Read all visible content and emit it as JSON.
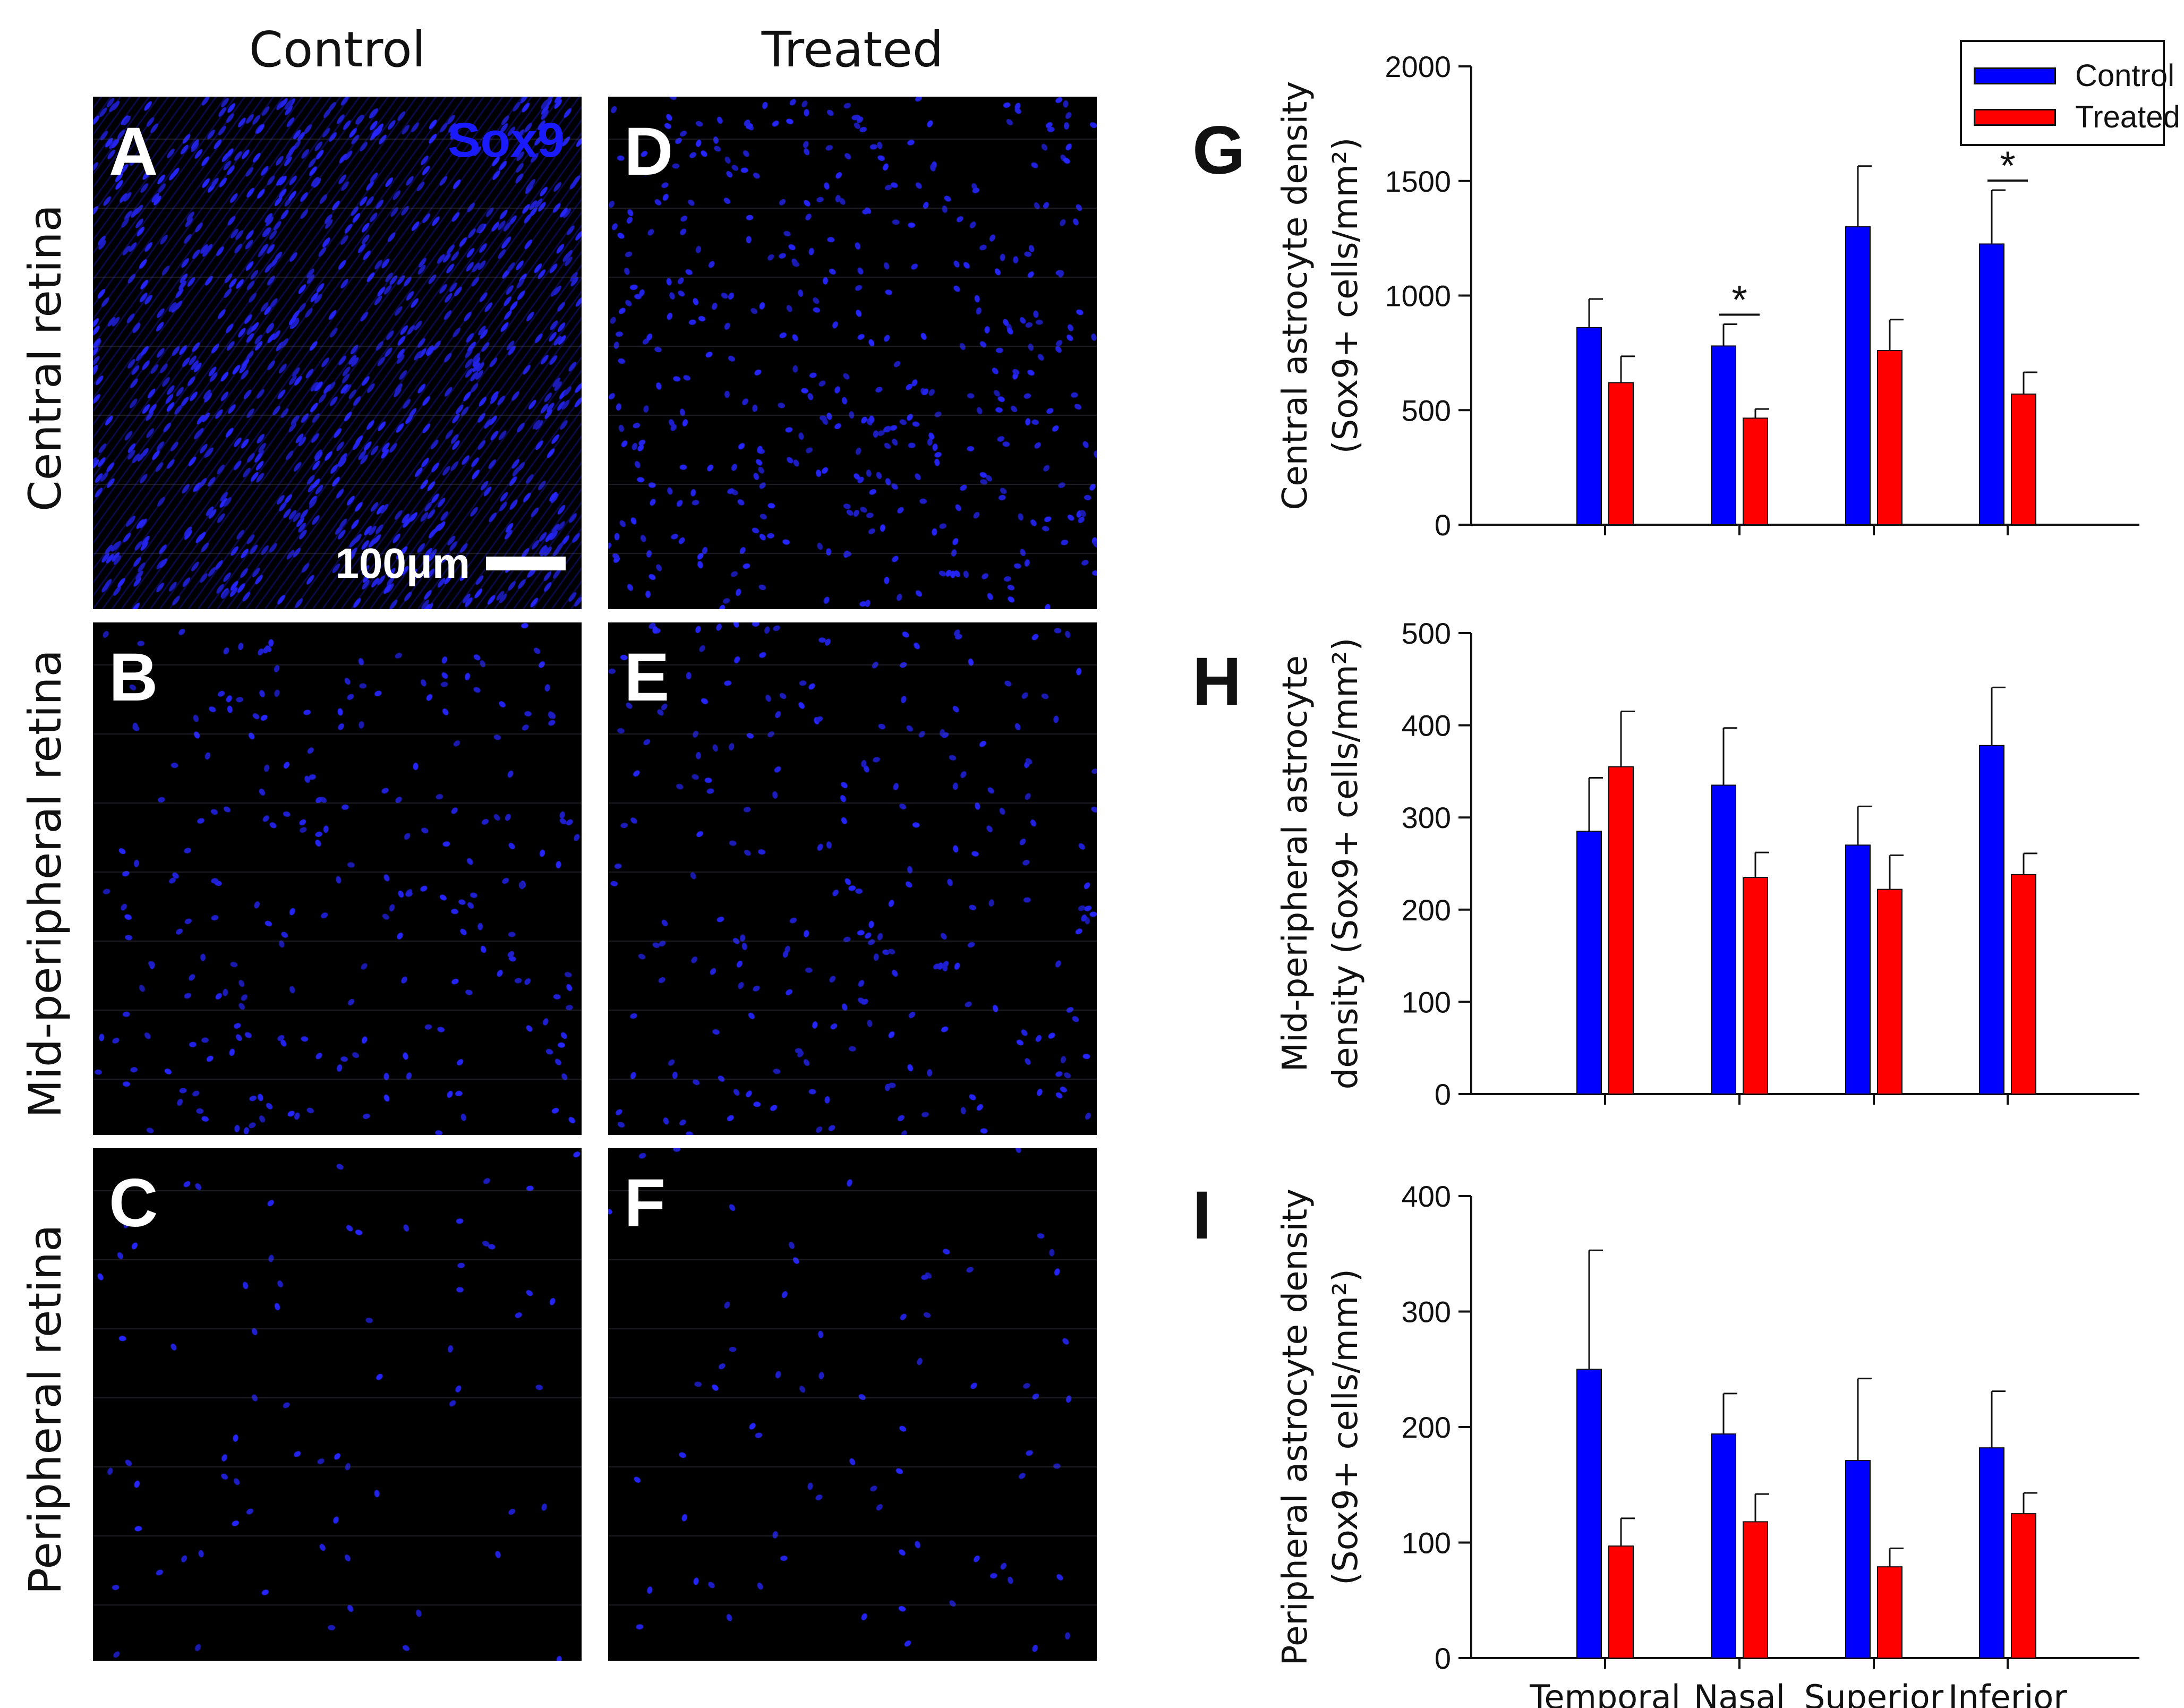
{
  "columns": [
    "Control",
    "Treated"
  ],
  "rows": [
    "Central retina",
    "Mid-peripheral retina",
    "Peripheral retina"
  ],
  "panels": [
    {
      "letter": "A",
      "condition": "Control",
      "region": "Central retina"
    },
    {
      "letter": "D",
      "condition": "Treated",
      "region": "Central retina"
    },
    {
      "letter": "B",
      "condition": "Control",
      "region": "Mid-peripheral retina"
    },
    {
      "letter": "E",
      "condition": "Treated",
      "region": "Mid-peripheral retina"
    },
    {
      "letter": "C",
      "condition": "Control",
      "region": "Peripheral retina"
    },
    {
      "letter": "F",
      "condition": "Treated",
      "region": "Peripheral retina"
    }
  ],
  "stain_label": "Sox9",
  "scale_bar": {
    "label": "100μm"
  },
  "colors": {
    "control": "#0000ff",
    "treated": "#ff0000",
    "stain": "#1a1aff"
  },
  "chart_data": [
    {
      "type": "bar",
      "panel_letter": "G",
      "title": "",
      "ylabel_line1": "Central astrocyte density",
      "ylabel_line2": "(Sox9+ cells/mm²)",
      "categories": [
        "Temporal",
        "Nasal",
        "Superior",
        "Inferior"
      ],
      "ylim": [
        0,
        2000
      ],
      "yticks": [
        0,
        500,
        1000,
        1500,
        2000
      ],
      "series": [
        {
          "name": "Control",
          "values": [
            860,
            780,
            1300,
            1225
          ],
          "errors": [
            125,
            95,
            265,
            235
          ]
        },
        {
          "name": "Treated",
          "values": [
            620,
            465,
            760,
            570
          ],
          "errors": [
            115,
            40,
            135,
            95
          ]
        }
      ],
      "significance": [
        {
          "category": "Nasal",
          "label": "*"
        },
        {
          "category": "Inferior",
          "label": "*"
        }
      ],
      "show_xlabels": false,
      "legend": {
        "position": "top-right",
        "entries": [
          "Control",
          "Treated"
        ]
      }
    },
    {
      "type": "bar",
      "panel_letter": "H",
      "title": "",
      "ylabel_line1": "Mid-peripheral astrocyte",
      "ylabel_line2": "density (Sox9+ cells/mm²)",
      "categories": [
        "Temporal",
        "Nasal",
        "Superior",
        "Inferior"
      ],
      "ylim": [
        0,
        500
      ],
      "yticks": [
        0,
        100,
        200,
        300,
        400,
        500
      ],
      "series": [
        {
          "name": "Control",
          "values": [
            285,
            335,
            270,
            378
          ],
          "errors": [
            58,
            62,
            42,
            63
          ]
        },
        {
          "name": "Treated",
          "values": [
            355,
            235,
            222,
            238
          ],
          "errors": [
            60,
            27,
            37,
            23
          ]
        }
      ],
      "significance": [],
      "show_xlabels": false
    },
    {
      "type": "bar",
      "panel_letter": "I",
      "title": "",
      "ylabel_line1": "Peripheral astrocyte density",
      "ylabel_line2": "(Sox9+ cells/mm²)",
      "categories": [
        "Temporal",
        "Nasal",
        "Superior",
        "Inferior"
      ],
      "ylim": [
        0,
        400
      ],
      "yticks": [
        0,
        100,
        200,
        300,
        400
      ],
      "series": [
        {
          "name": "Control",
          "values": [
            250,
            194,
            171,
            182
          ],
          "errors": [
            103,
            35,
            71,
            49
          ]
        },
        {
          "name": "Treated",
          "values": [
            97,
            118,
            79,
            125
          ],
          "errors": [
            24,
            24,
            16,
            18
          ]
        }
      ],
      "significance": [],
      "show_xlabels": true
    }
  ]
}
